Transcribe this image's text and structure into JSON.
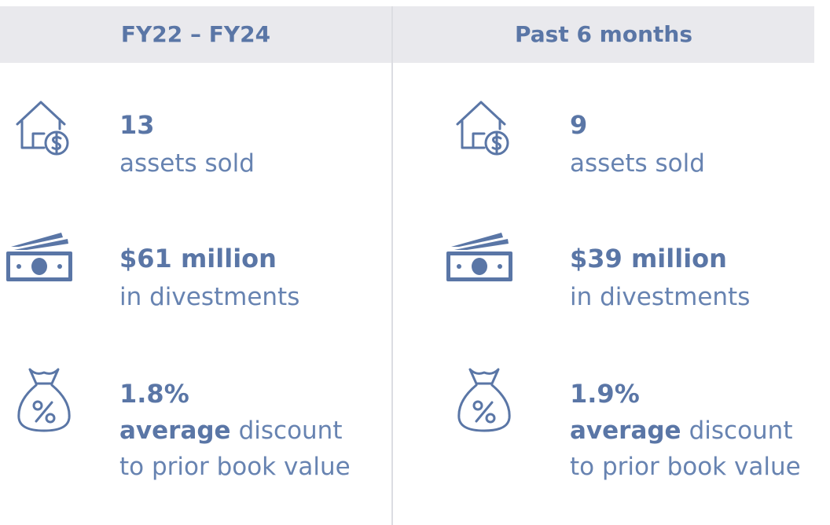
{
  "columns": [
    {
      "header": "FY22 – FY24",
      "metrics": [
        {
          "value": "13",
          "label": "assets sold"
        },
        {
          "value": "$61 million",
          "label": "in divestments"
        },
        {
          "value": "1.8%",
          "label_bold": "average",
          "label": "discount",
          "label_line2": "to prior book value"
        }
      ]
    },
    {
      "header": "Past 6 months",
      "metrics": [
        {
          "value": "9",
          "label": "assets sold"
        },
        {
          "value": "$39 million",
          "label": "in divestments"
        },
        {
          "value": "1.9%",
          "label_bold": "average",
          "label": "discount",
          "label_line2": "to prior book value"
        }
      ]
    }
  ]
}
